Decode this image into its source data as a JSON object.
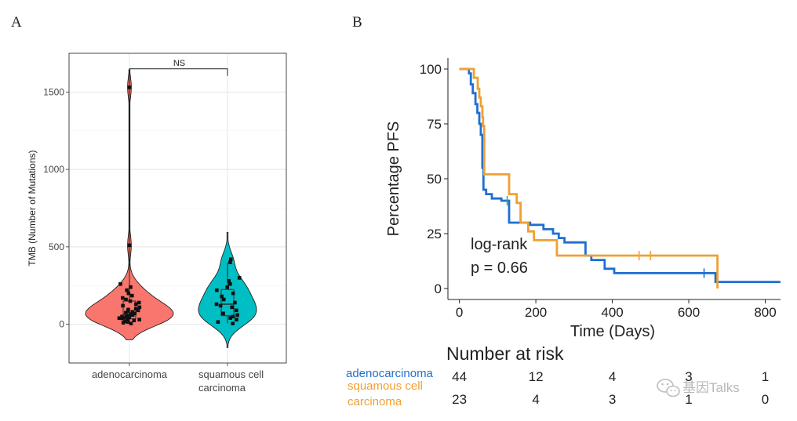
{
  "panels": {
    "a": "A",
    "b": "B"
  },
  "chart_data": [
    {
      "type": "violin",
      "panel": "A",
      "ylabel": "TMB (Number of Mutations)",
      "ylim": [
        -250,
        1750
      ],
      "yticks": [
        0,
        500,
        1000,
        1500
      ],
      "categories": [
        "adenocarcinoma",
        "squamous cell carcinoma"
      ],
      "category_lines": [
        [
          "adenocarcinoma"
        ],
        [
          "squamous cell",
          "carcinoma"
        ]
      ],
      "series": [
        {
          "name": "adenocarcinoma",
          "color": "#F8766D",
          "range": [
            -100,
            1650
          ],
          "box": {
            "q1": 35,
            "median": 65,
            "q3": 150,
            "whisker_low": 5,
            "whisker_high": 1650
          },
          "points": [
            1530,
            510,
            260,
            240,
            220,
            200,
            185,
            170,
            160,
            150,
            140,
            130,
            120,
            110,
            100,
            95,
            90,
            85,
            80,
            75,
            70,
            65,
            60,
            55,
            50,
            48,
            45,
            40,
            38,
            35,
            30,
            25,
            20,
            15,
            10,
            5
          ]
        },
        {
          "name": "squamous cell carcinoma",
          "color": "#00BFC4",
          "range": [
            -150,
            600
          ],
          "box": {
            "q1": 55,
            "median": 130,
            "q3": 225,
            "whisker_low": 5,
            "whisker_high": 400
          },
          "points": [
            420,
            400,
            300,
            280,
            260,
            240,
            220,
            200,
            180,
            160,
            140,
            130,
            120,
            110,
            90,
            70,
            60,
            50,
            40,
            30,
            15,
            5
          ]
        }
      ],
      "annotation": {
        "label": "NS",
        "between": [
          "adenocarcinoma",
          "squamous cell carcinoma"
        ],
        "y": 1650
      }
    },
    {
      "type": "line",
      "subtype": "kaplan-meier",
      "panel": "B",
      "xlabel": "Time (Days)",
      "ylabel": "Percentage PFS",
      "xlim": [
        -30,
        840
      ],
      "ylim": [
        -5,
        105
      ],
      "xticks": [
        0,
        200,
        400,
        600,
        800
      ],
      "yticks": [
        0,
        25,
        50,
        75,
        100
      ],
      "annotation": [
        "log-rank",
        "p = 0.66"
      ],
      "series": [
        {
          "name": "adenocarcinoma",
          "color": "#1F6FD1",
          "steps": [
            [
              0,
              100
            ],
            [
              25,
              98
            ],
            [
              30,
              93
            ],
            [
              35,
              89
            ],
            [
              42,
              84
            ],
            [
              47,
              80
            ],
            [
              52,
              75
            ],
            [
              56,
              70
            ],
            [
              60,
              55
            ],
            [
              63,
              45
            ],
            [
              70,
              43
            ],
            [
              85,
              41
            ],
            [
              110,
              40
            ],
            [
              130,
              30
            ],
            [
              165,
              30
            ],
            [
              185,
              29
            ],
            [
              220,
              27
            ],
            [
              245,
              25
            ],
            [
              260,
              23
            ],
            [
              275,
              21
            ],
            [
              330,
              15
            ],
            [
              345,
              13
            ],
            [
              380,
              9
            ],
            [
              405,
              7
            ],
            [
              640,
              7
            ],
            [
              660,
              7
            ],
            [
              670,
              3
            ],
            [
              840,
              3
            ]
          ],
          "censors": [
            [
              125,
              40
            ],
            [
              640,
              7
            ]
          ]
        },
        {
          "name": "squamous cell carcinoma",
          "color": "#F0A033",
          "steps": [
            [
              0,
              100
            ],
            [
              38,
              96
            ],
            [
              48,
              91
            ],
            [
              52,
              87
            ],
            [
              56,
              83
            ],
            [
              60,
              78
            ],
            [
              62,
              74
            ],
            [
              65,
              52
            ],
            [
              110,
              52
            ],
            [
              130,
              43
            ],
            [
              150,
              39
            ],
            [
              160,
              30
            ],
            [
              180,
              26
            ],
            [
              195,
              22
            ],
            [
              255,
              15
            ],
            [
              470,
              15
            ],
            [
              500,
              15
            ],
            [
              675,
              15
            ],
            [
              675,
              0
            ]
          ],
          "censors": [
            [
              470,
              15
            ],
            [
              500,
              15
            ]
          ]
        }
      ],
      "risk_table": {
        "title": "Number at risk",
        "times": [
          0,
          200,
          400,
          600,
          800
        ],
        "rows": [
          {
            "label_lines": [
              "adenocarcinoma"
            ],
            "color": "#1F6FD1",
            "counts": [
              "44",
              "12",
              "4",
              "3",
              "1"
            ]
          },
          {
            "label_lines": [
              "squamous cell",
              "carcinoma"
            ],
            "color": "#F0A033",
            "counts": [
              "23",
              "4",
              "3",
              "1",
              "0"
            ]
          }
        ]
      }
    }
  ],
  "watermark": {
    "text": "基因Talks",
    "icon": "wechat-icon"
  }
}
